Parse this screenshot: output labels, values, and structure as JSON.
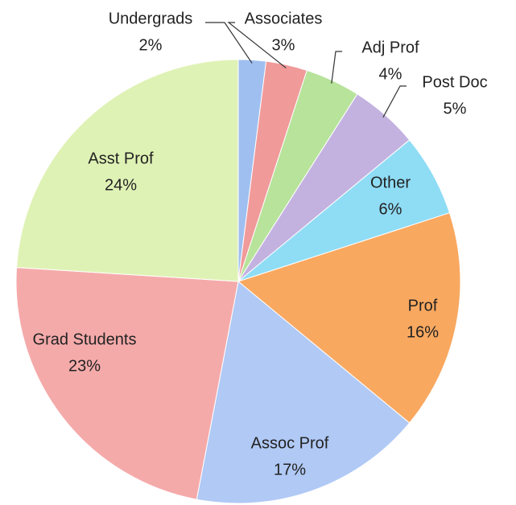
{
  "chart_data": {
    "type": "pie",
    "categories": [
      "Undergrads",
      "Associates",
      "Adj Prof",
      "Post Doc",
      "Other",
      "Prof",
      "Assoc Prof",
      "Grad Students",
      "Asst Prof"
    ],
    "values": [
      2,
      3,
      4,
      5,
      6,
      16,
      17,
      23,
      24
    ],
    "value_labels": [
      "2%",
      "3%",
      "4%",
      "5%",
      "6%",
      "16%",
      "17%",
      "23%",
      "24%"
    ],
    "colors": [
      "#9fbff0",
      "#f09a9a",
      "#b7e39a",
      "#c3b2e0",
      "#8fdcf5",
      "#f9a860",
      "#b0c9f5",
      "#f5aaaa",
      "#dff2b5"
    ]
  }
}
